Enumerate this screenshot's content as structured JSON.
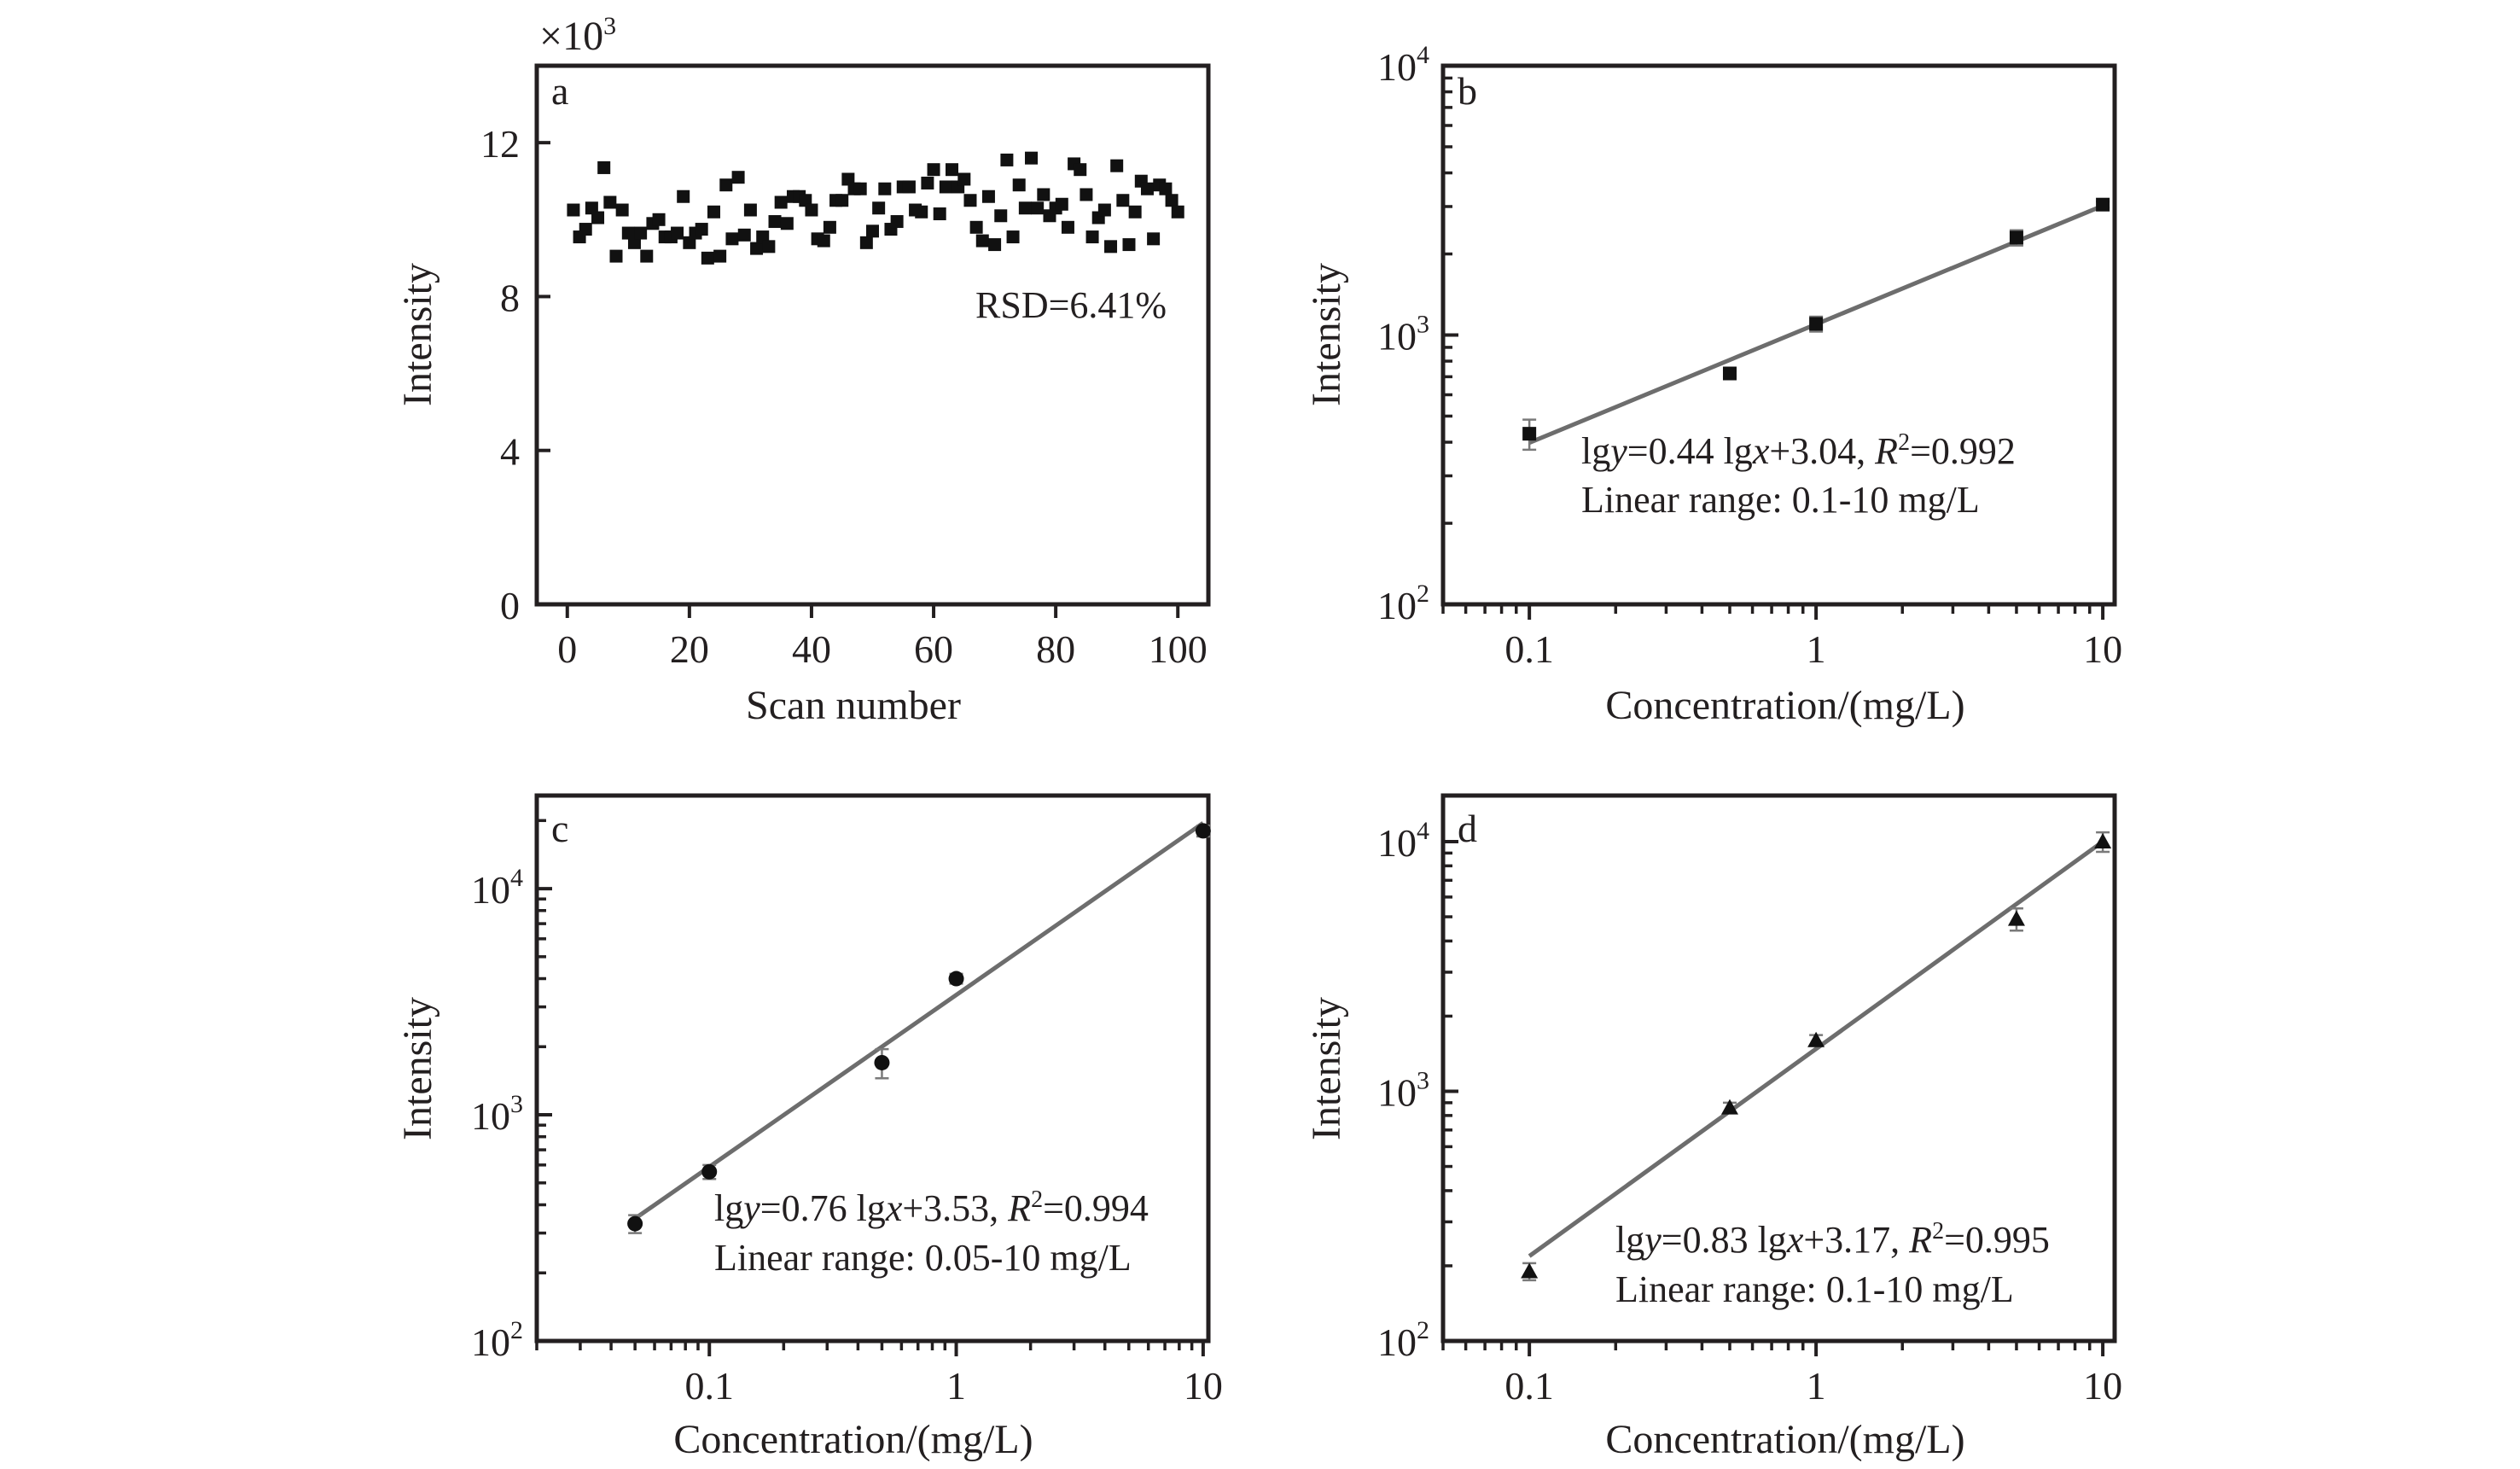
{
  "figure": {
    "panels": [
      "a",
      "b",
      "c",
      "d"
    ]
  },
  "chart_data": [
    {
      "id": "a",
      "type": "scatter",
      "panel_label": "a",
      "title": "",
      "xlabel": "Scan number",
      "ylabel": "Intensity",
      "y_multiplier_label": "×10",
      "y_multiplier_exp": "3",
      "xlim": [
        -5,
        105
      ],
      "ylim": [
        0,
        14
      ],
      "xticks": [
        0,
        20,
        40,
        60,
        80,
        100
      ],
      "yticks": [
        0,
        4,
        8,
        12
      ],
      "xscale": "linear",
      "yscale": "linear",
      "marker": "square",
      "annotation": "RSD=6.41%",
      "annotation_position": "upper-right",
      "grid": false,
      "x": [
        1,
        2,
        3,
        4,
        5,
        6,
        7,
        8,
        9,
        10,
        11,
        12,
        13,
        14,
        15,
        16,
        17,
        18,
        19,
        20,
        21,
        22,
        23,
        24,
        25,
        26,
        27,
        28,
        29,
        30,
        31,
        32,
        33,
        34,
        35,
        36,
        37,
        38,
        39,
        40,
        41,
        42,
        43,
        44,
        45,
        46,
        47,
        48,
        49,
        50,
        51,
        52,
        53,
        54,
        55,
        56,
        57,
        58,
        59,
        60,
        61,
        62,
        63,
        64,
        65,
        66,
        67,
        68,
        69,
        70,
        71,
        72,
        73,
        74,
        75,
        76,
        77,
        78,
        79,
        80,
        81,
        82,
        83,
        84,
        85,
        86,
        87,
        88,
        89,
        90,
        91,
        92,
        93,
        94,
        95,
        96,
        97,
        98,
        99,
        100
      ],
      "values": [
        10.25,
        9.55,
        9.75,
        10.3,
        10.05,
        11.35,
        10.45,
        9.05,
        10.25,
        9.65,
        9.4,
        9.65,
        9.05,
        9.9,
        10.0,
        9.55,
        9.55,
        9.65,
        10.6,
        9.4,
        9.65,
        9.75,
        9.0,
        10.2,
        9.05,
        10.9,
        9.5,
        11.1,
        9.6,
        10.25,
        9.25,
        9.55,
        9.3,
        9.95,
        10.45,
        9.9,
        10.6,
        10.6,
        10.5,
        10.25,
        9.5,
        9.45,
        9.8,
        10.5,
        10.5,
        11.05,
        10.8,
        10.8,
        9.4,
        9.7,
        10.3,
        10.8,
        9.75,
        9.95,
        10.85,
        10.85,
        10.25,
        10.2,
        10.95,
        11.3,
        10.15,
        10.85,
        11.3,
        10.85,
        11.05,
        10.5,
        9.8,
        9.45,
        10.6,
        9.35,
        10.1,
        11.55,
        9.55,
        10.9,
        10.3,
        11.6,
        10.3,
        10.65,
        10.1,
        10.3,
        10.4,
        9.8,
        11.45,
        11.3,
        10.65,
        9.55,
        10.05,
        10.25,
        9.3,
        11.4,
        10.5,
        9.35,
        10.2,
        11.0,
        10.8,
        9.5,
        10.9,
        10.8,
        10.5,
        10.2
      ]
    },
    {
      "id": "b",
      "type": "scatter",
      "panel_label": "b",
      "title": "",
      "xlabel": "Concentration/(mg/L)",
      "ylabel": "Intensity",
      "xscale": "log",
      "yscale": "log",
      "xlim": [
        0.05,
        11
      ],
      "ylim": [
        100,
        10000
      ],
      "xticks": [
        0.1,
        1,
        10
      ],
      "xtick_labels": [
        "0.1",
        "1",
        "10"
      ],
      "yticks": [
        100,
        1000,
        10000
      ],
      "ytick_base": "10",
      "ytick_exps": [
        "2",
        "3",
        "4"
      ],
      "marker": "square",
      "x": [
        0.1,
        0.5,
        1,
        5,
        10
      ],
      "values": [
        430,
        720,
        1100,
        2300,
        3050
      ],
      "errors": [
        55,
        20,
        70,
        150,
        80
      ],
      "fit": {
        "slope": 0.44,
        "intercept": 3.04,
        "r2": 0.992,
        "x_range": [
          0.1,
          10
        ]
      },
      "equation": {
        "prefix": "lg",
        "y_var": "y",
        "mid": "=0.44 lg",
        "x_var": "x",
        "suffix": "+3.04, ",
        "r_var": "R",
        "r_exp": "2",
        "r_value": "=0.992"
      },
      "linear_range": "Linear range: 0.1-10 mg/L",
      "grid": false
    },
    {
      "id": "c",
      "type": "scatter",
      "panel_label": "c",
      "title": "",
      "xlabel": "Concentration/(mg/L)",
      "ylabel": "Intensity",
      "xscale": "log",
      "yscale": "log",
      "xlim": [
        0.02,
        10.5
      ],
      "ylim": [
        100,
        25800
      ],
      "xticks": [
        0.1,
        1,
        10
      ],
      "xtick_labels": [
        "0.1",
        "1",
        "10"
      ],
      "yticks": [
        100,
        1000,
        10000
      ],
      "ytick_base": "10",
      "ytick_exps": [
        "2",
        "3",
        "4"
      ],
      "marker": "circle",
      "x": [
        0.05,
        0.1,
        0.5,
        1,
        10
      ],
      "values": [
        330,
        560,
        1700,
        4000,
        18000
      ],
      "errors": [
        30,
        40,
        250,
        200,
        1000
      ],
      "fit": {
        "slope": 0.76,
        "intercept": 3.53,
        "r2": 0.994,
        "x_range": [
          0.05,
          10
        ]
      },
      "equation": {
        "prefix": "lg",
        "y_var": "y",
        "mid": "=0.76 lg",
        "x_var": "x",
        "suffix": "+3.53, ",
        "r_var": "R",
        "r_exp": "2",
        "r_value": "=0.994"
      },
      "linear_range": "Linear range: 0.05-10 mg/L",
      "grid": false
    },
    {
      "id": "d",
      "type": "scatter",
      "panel_label": "d",
      "title": "",
      "xlabel": "Concentration/(mg/L)",
      "ylabel": "Intensity",
      "xscale": "log",
      "yscale": "log",
      "xlim": [
        0.05,
        11
      ],
      "ylim": [
        100,
        15300
      ],
      "xticks": [
        0.1,
        1,
        10
      ],
      "xtick_labels": [
        "0.1",
        "1",
        "10"
      ],
      "yticks": [
        100,
        1000,
        10000
      ],
      "ytick_base": "10",
      "ytick_exps": [
        "2",
        "3",
        "4"
      ],
      "marker": "triangle",
      "x": [
        0.1,
        0.5,
        1,
        5,
        10
      ],
      "values": [
        190,
        860,
        1600,
        4900,
        10000
      ],
      "errors": [
        15,
        40,
        80,
        500,
        900
      ],
      "fit": {
        "slope": 0.83,
        "intercept": 3.17,
        "r2": 0.995,
        "x_range": [
          0.1,
          10
        ]
      },
      "equation": {
        "prefix": "lg",
        "y_var": "y",
        "mid": "=0.83 lg",
        "x_var": "x",
        "suffix": "+3.17, ",
        "r_var": "R",
        "r_exp": "2",
        "r_value": "=0.995"
      },
      "linear_range": "Linear range: 0.1-10 mg/L",
      "grid": false
    }
  ]
}
